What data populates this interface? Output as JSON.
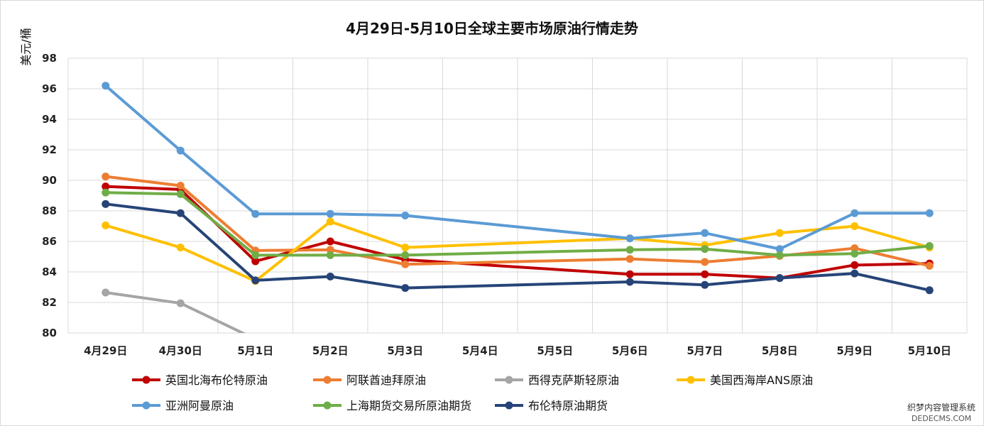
{
  "chart_data": {
    "type": "line",
    "title": "4月29日-5月10日全球主要市场原油行情走势",
    "ylabel": "美元/桶",
    "xlabel": "",
    "ylim": [
      80,
      98
    ],
    "yticks": [
      80,
      82,
      84,
      86,
      88,
      90,
      92,
      94,
      96,
      98
    ],
    "grid": true,
    "legend_position": "bottom",
    "categories": [
      "4月29日",
      "4月30日",
      "5月1日",
      "5月2日",
      "5月3日",
      "5月4日",
      "5月5日",
      "5月6日",
      "5月7日",
      "5月8日",
      "5月9日",
      "5月10日"
    ],
    "series": [
      {
        "name": "英国北海布伦特原油",
        "color": "#C00000",
        "values": [
          89.6,
          89.4,
          84.7,
          86.0,
          84.8,
          null,
          null,
          83.85,
          83.85,
          83.6,
          84.45,
          84.55
        ]
      },
      {
        "name": "阿联酋迪拜原油",
        "color": "#ED7D31",
        "values": [
          90.25,
          89.65,
          85.4,
          85.45,
          84.5,
          null,
          null,
          84.85,
          84.65,
          85.05,
          85.55,
          84.4
        ]
      },
      {
        "name": "西得克萨斯轻原油",
        "color": "#A5A5A5",
        "values": [
          82.65,
          81.95,
          79.6,
          null,
          null,
          null,
          null,
          null,
          null,
          null,
          null,
          null
        ]
      },
      {
        "name": "美国西海岸ANS原油",
        "color": "#FFC000",
        "values": [
          87.05,
          85.6,
          83.4,
          87.3,
          85.6,
          null,
          null,
          86.2,
          85.75,
          86.55,
          87.0,
          85.6
        ]
      },
      {
        "name": "亚洲阿曼原油",
        "color": "#5B9BD5",
        "values": [
          96.2,
          91.95,
          87.8,
          87.8,
          87.7,
          null,
          null,
          86.2,
          86.55,
          85.5,
          87.85,
          87.85
        ]
      },
      {
        "name": "上海期货交易所原油期货",
        "color": "#70AD47",
        "values": [
          89.2,
          89.1,
          85.1,
          85.1,
          85.1,
          null,
          null,
          85.45,
          85.5,
          85.1,
          85.2,
          85.7
        ]
      },
      {
        "name": "布伦特原油期货",
        "color": "#264478",
        "values": [
          88.45,
          87.85,
          83.45,
          83.7,
          82.95,
          null,
          null,
          83.35,
          83.15,
          83.6,
          83.9,
          82.8
        ]
      }
    ]
  },
  "watermark": {
    "line1": "织梦内容管理系统",
    "line2": "DEDECMS.COM"
  }
}
